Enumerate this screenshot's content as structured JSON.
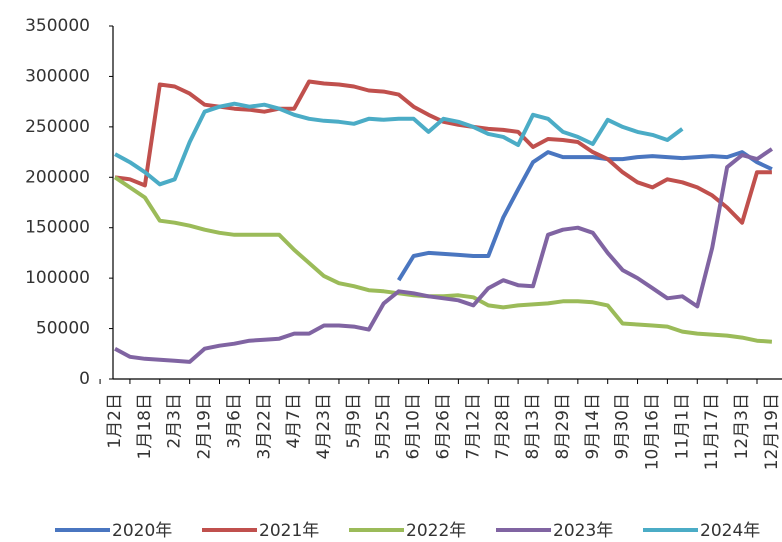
{
  "chart_data": {
    "type": "line",
    "categories": [
      "1月2日",
      null,
      "1月18日",
      null,
      "2月3日",
      null,
      "2月19日",
      null,
      "3月6日",
      null,
      "3月22日",
      null,
      "4月7日",
      null,
      "4月23日",
      null,
      "5月9日",
      null,
      "5月25日",
      null,
      "6月10日",
      null,
      "6月26日",
      null,
      "7月12日",
      null,
      "7月28日",
      null,
      "8月13日",
      null,
      "8月29日",
      null,
      "9月14日",
      null,
      "9月30日",
      null,
      "10月16日",
      null,
      "11月1日",
      null,
      "11月17日",
      null,
      "12月3日",
      null,
      "12月19日"
    ],
    "ylim": [
      0,
      350000
    ],
    "yticks": [
      0,
      50000,
      100000,
      150000,
      200000,
      250000,
      300000,
      350000
    ],
    "series": [
      {
        "name": "2020年",
        "color": "#4a76c0",
        "values": [
          null,
          null,
          null,
          null,
          null,
          null,
          null,
          null,
          null,
          null,
          null,
          null,
          null,
          null,
          null,
          null,
          null,
          null,
          null,
          98000,
          122000,
          125000,
          124000,
          123000,
          122000,
          122000,
          160000,
          188000,
          215000,
          225000,
          220000,
          220000,
          220000,
          218000,
          218000,
          220000,
          221000,
          220000,
          219000,
          220000,
          221000,
          220000,
          225000,
          215000,
          208000
        ]
      },
      {
        "name": "2021年",
        "color": "#c0504d",
        "values": [
          200000,
          198000,
          192000,
          292000,
          290000,
          283000,
          272000,
          270000,
          268000,
          267000,
          265000,
          268000,
          268000,
          295000,
          293000,
          292000,
          290000,
          286000,
          285000,
          282000,
          270000,
          262000,
          255000,
          252000,
          250000,
          248000,
          247000,
          245000,
          230000,
          238000,
          237000,
          235000,
          225000,
          218000,
          205000,
          195000,
          190000,
          198000,
          195000,
          190000,
          182000,
          170000,
          155000,
          205000,
          205000
        ]
      },
      {
        "name": "2022年",
        "color": "#9bbb59",
        "values": [
          200000,
          190000,
          180000,
          157000,
          155000,
          152000,
          148000,
          145000,
          143000,
          143000,
          143000,
          143000,
          128000,
          115000,
          102000,
          95000,
          92000,
          88000,
          87000,
          85000,
          83000,
          82000,
          82000,
          83000,
          81000,
          73000,
          71000,
          73000,
          74000,
          75000,
          77000,
          77000,
          76000,
          73000,
          55000,
          54000,
          53000,
          52000,
          47000,
          45000,
          44000,
          43000,
          41000,
          38000,
          37000
        ]
      },
      {
        "name": "2023年",
        "color": "#8064a2",
        "values": [
          30000,
          22000,
          20000,
          19000,
          18000,
          17000,
          30000,
          33000,
          35000,
          38000,
          39000,
          40000,
          45000,
          45000,
          53000,
          53000,
          52000,
          49000,
          75000,
          87000,
          85000,
          82000,
          80000,
          78000,
          73000,
          90000,
          98000,
          93000,
          92000,
          143000,
          148000,
          150000,
          145000,
          125000,
          108000,
          100000,
          90000,
          80000,
          82000,
          72000,
          130000,
          210000,
          222000,
          218000,
          228000
        ]
      },
      {
        "name": "2024年",
        "color": "#4bacc6",
        "values": [
          223000,
          215000,
          205000,
          193000,
          198000,
          235000,
          265000,
          270000,
          273000,
          270000,
          272000,
          268000,
          262000,
          258000,
          256000,
          255000,
          253000,
          258000,
          257000,
          258000,
          258000,
          245000,
          258000,
          255000,
          250000,
          243000,
          240000,
          232000,
          262000,
          258000,
          245000,
          240000,
          233000,
          257000,
          250000,
          245000,
          242000,
          237000,
          248000,
          null,
          null,
          null,
          null,
          null,
          null
        ]
      }
    ]
  }
}
